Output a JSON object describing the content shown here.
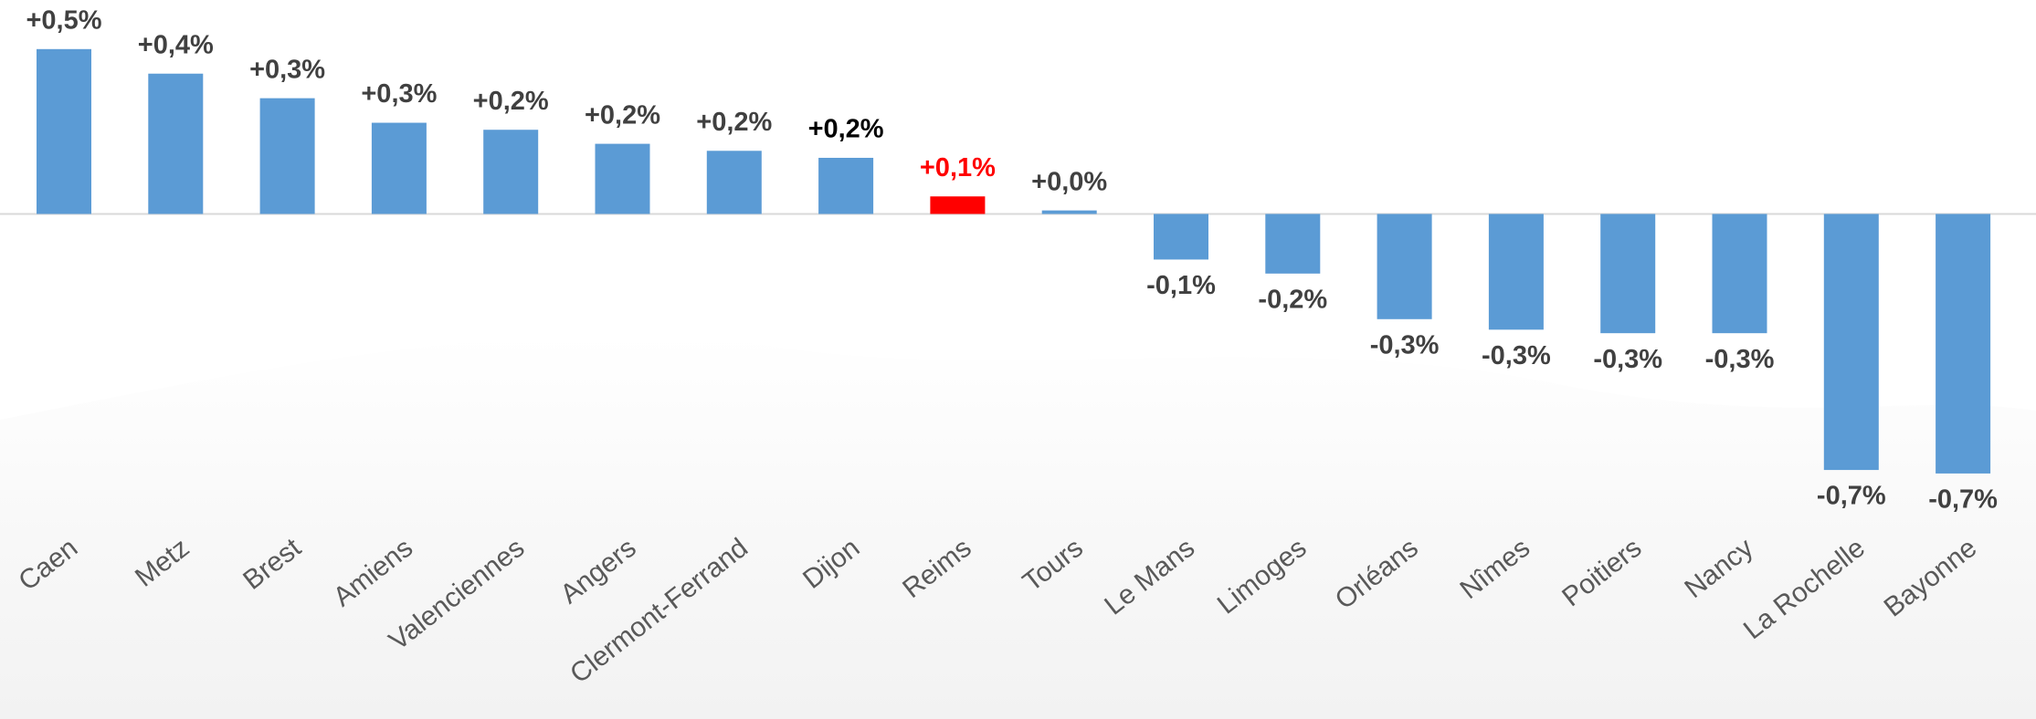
{
  "chart_data": {
    "type": "bar",
    "categories": [
      "Caen",
      "Metz",
      "Brest",
      "Amiens",
      "Valenciennes",
      "Angers",
      "Clermont-Ferrand",
      "Dijon",
      "Reims",
      "Tours",
      "Le Mans",
      "Limoges",
      "Orléans",
      "Nîmes",
      "Poitiers",
      "Nancy",
      "La Rochelle",
      "Bayonne"
    ],
    "values": [
      0.47,
      0.4,
      0.33,
      0.26,
      0.24,
      0.2,
      0.18,
      0.16,
      0.05,
      0.01,
      -0.13,
      -0.17,
      -0.3,
      -0.33,
      -0.34,
      -0.34,
      -0.73,
      -0.74
    ],
    "value_labels": [
      "+0,5%",
      "+0,4%",
      "+0,3%",
      "+0,3%",
      "+0,2%",
      "+0,2%",
      "+0,2%",
      "+0,2%",
      "+0,1%",
      "+0,0%",
      "-0,1%",
      "-0,2%",
      "-0,3%",
      "-0,3%",
      "-0,3%",
      "-0,3%",
      "-0,7%",
      "-0,7%"
    ],
    "colors": [
      "#5b9bd5",
      "#5b9bd5",
      "#5b9bd5",
      "#5b9bd5",
      "#5b9bd5",
      "#5b9bd5",
      "#5b9bd5",
      "#5b9bd5",
      "#ff0000",
      "#5b9bd5",
      "#5b9bd5",
      "#5b9bd5",
      "#5b9bd5",
      "#5b9bd5",
      "#5b9bd5",
      "#5b9bd5",
      "#5b9bd5",
      "#5b9bd5"
    ],
    "label_colors": [
      "#404040",
      "#404040",
      "#404040",
      "#404040",
      "#404040",
      "#404040",
      "#404040",
      "#000000",
      "#ff0000",
      "#404040",
      "#404040",
      "#404040",
      "#404040",
      "#404040",
      "#404040",
      "#404040",
      "#404040",
      "#404040"
    ],
    "ylim": [
      -1.44,
      0.61
    ]
  }
}
